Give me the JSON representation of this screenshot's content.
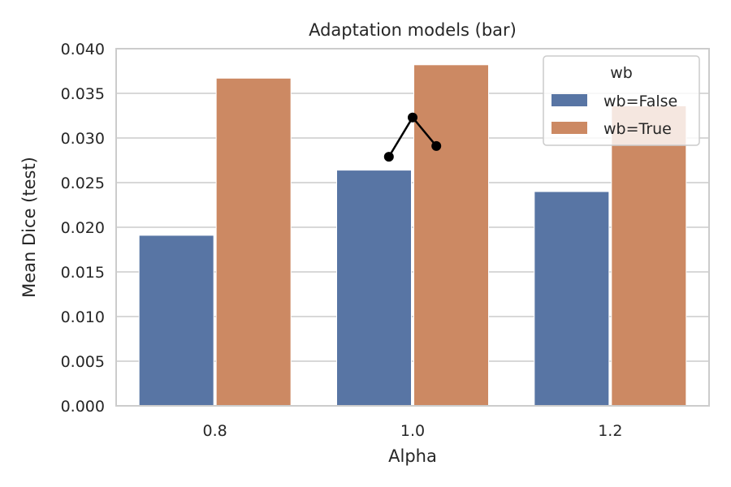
{
  "chart_data": {
    "type": "bar",
    "title": "Adaptation models (bar)",
    "xlabel": "Alpha",
    "ylabel": "Mean Dice (test)",
    "categories": [
      "0.8",
      "1.0",
      "1.2"
    ],
    "ylim": [
      0,
      0.04
    ],
    "yticks": [
      0.0,
      0.005,
      0.01,
      0.015,
      0.02,
      0.025,
      0.03,
      0.035,
      0.04
    ],
    "ytick_labels": [
      "0.000",
      "0.005",
      "0.010",
      "0.015",
      "0.020",
      "0.025",
      "0.030",
      "0.035",
      "0.040"
    ],
    "grid": true,
    "legend": {
      "title": "wb",
      "placement": "top-right"
    },
    "series": [
      {
        "name": "wb=False",
        "color": "#5875a4",
        "values": [
          0.0191,
          0.0264,
          0.024
        ]
      },
      {
        "name": "wb=True",
        "color": "#cc8963",
        "values": [
          0.0367,
          0.0382,
          0.0336
        ]
      }
    ],
    "overlay_line": {
      "color": "#000000",
      "x_offsets": [
        -0.4,
        0.0,
        0.4
      ],
      "category": "1.0",
      "values": [
        0.0279,
        0.0323,
        0.0291
      ]
    }
  }
}
